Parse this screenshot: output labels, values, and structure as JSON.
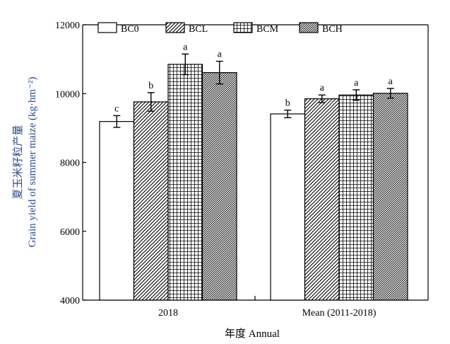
{
  "chart_data": {
    "type": "bar",
    "title": "",
    "xlabel": "年度 Annual",
    "ylabel_lines": [
      "夏玉米籽粒产量",
      "Grain yield of summer maize (kg·hm⁻²)"
    ],
    "categories": [
      "2018",
      "Mean (2011-2018)"
    ],
    "series": [
      {
        "name": "BC0",
        "values": [
          9190,
          9410
        ],
        "errors": [
          170,
          110
        ],
        "letters": [
          "c",
          "b"
        ],
        "pattern": "white"
      },
      {
        "name": "BCL",
        "values": [
          9760,
          9850
        ],
        "errors": [
          270,
          110
        ],
        "letters": [
          "b",
          "a"
        ],
        "pattern": "diag-fine"
      },
      {
        "name": "BCM",
        "values": [
          10850,
          9960
        ],
        "errors": [
          300,
          150
        ],
        "letters": [
          "a",
          "a"
        ],
        "pattern": "grid"
      },
      {
        "name": "BCH",
        "values": [
          10610,
          10010
        ],
        "errors": [
          330,
          140
        ],
        "letters": [
          "a",
          "a"
        ],
        "pattern": "diag-dense"
      }
    ],
    "ylim": [
      4000,
      12000
    ],
    "yticks": [
      4000,
      6000,
      8000,
      10000,
      12000
    ],
    "legend": "top-left",
    "grid": false,
    "colors": {
      "axis": "#000000",
      "ylabel": "#2f4a8a",
      "bar_fill": "#ffffff"
    }
  }
}
